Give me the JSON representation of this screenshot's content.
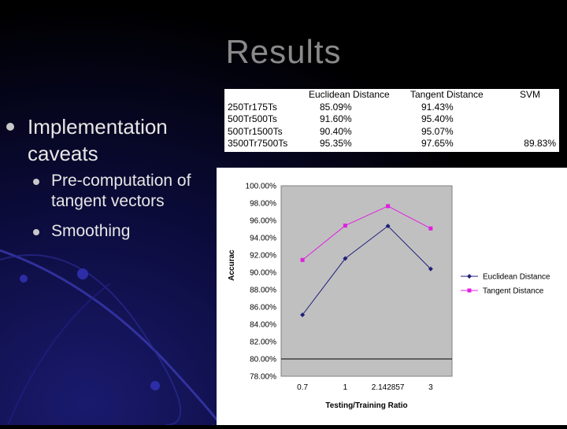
{
  "slide": {
    "title": "Results",
    "bullet": "Implementation caveats",
    "subbullets": [
      "Pre-computation of tangent vectors",
      "Smoothing"
    ]
  },
  "table": {
    "headers": [
      "",
      "Euclidean Distance",
      "Tangent Distance",
      "SVM"
    ],
    "rows": [
      [
        "250Tr175Ts",
        "85.09%",
        "91.43%",
        ""
      ],
      [
        "500Tr500Ts",
        "91.60%",
        "95.40%",
        ""
      ],
      [
        "500Tr1500Ts",
        "90.40%",
        "95.07%",
        ""
      ],
      [
        "3500Tr7500Ts",
        "95.35%",
        "97.65%",
        "89.83%"
      ]
    ]
  },
  "chart_data": {
    "type": "line",
    "x": [
      "0.7",
      "1",
      "2.142857",
      "3"
    ],
    "series": [
      {
        "name": "Euclidean Distance",
        "values": [
          85.09,
          91.6,
          95.35,
          90.4
        ],
        "color": "#1f1f7a",
        "marker": "diamond"
      },
      {
        "name": "Tangent Distance",
        "values": [
          91.43,
          95.4,
          97.65,
          95.07
        ],
        "color": "#e020e0",
        "marker": "square"
      }
    ],
    "yticks": [
      "100.00%",
      "98.00%",
      "96.00%",
      "94.00%",
      "92.00%",
      "90.00%",
      "88.00%",
      "86.00%",
      "84.00%",
      "82.00%",
      "80.00%",
      "78.00%"
    ],
    "ylim": [
      78,
      100
    ],
    "xlabel": "Testing/Training Ratio",
    "ylabel": "Accurac",
    "reference_line_y": 80,
    "legend_position": "right",
    "plot_background": "#c0c0c0"
  }
}
